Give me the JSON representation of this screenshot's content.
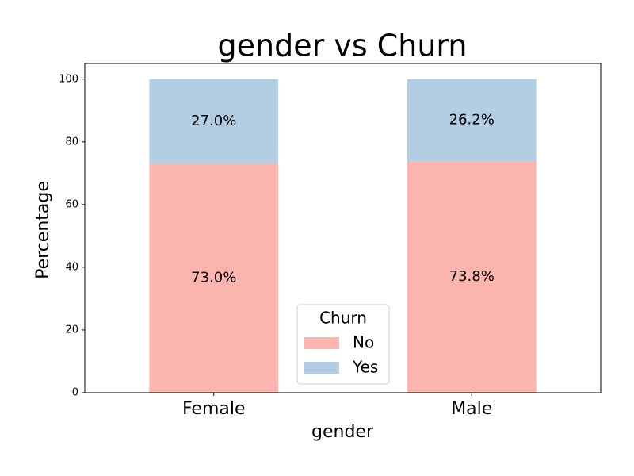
{
  "chart_data": {
    "type": "stacked_bar",
    "title": "gender vs Churn",
    "x_label": "gender",
    "y_label": "Percentage",
    "categories": [
      "Female",
      "Male"
    ],
    "series": [
      {
        "name": "No",
        "color": "#fbb4ae",
        "values": [
          73.0,
          73.8
        ],
        "value_labels": [
          "73.0%",
          "73.8%"
        ]
      },
      {
        "name": "Yes",
        "color": "#b3cde3",
        "values": [
          27.0,
          26.2
        ],
        "value_labels": [
          "27.0%",
          "26.2%"
        ]
      }
    ],
    "legend_title": "Churn",
    "legend_position": "lower center",
    "ylim": [
      0,
      105
    ],
    "yticks": [
      0,
      20,
      40,
      60,
      80,
      100
    ],
    "grid": false
  }
}
